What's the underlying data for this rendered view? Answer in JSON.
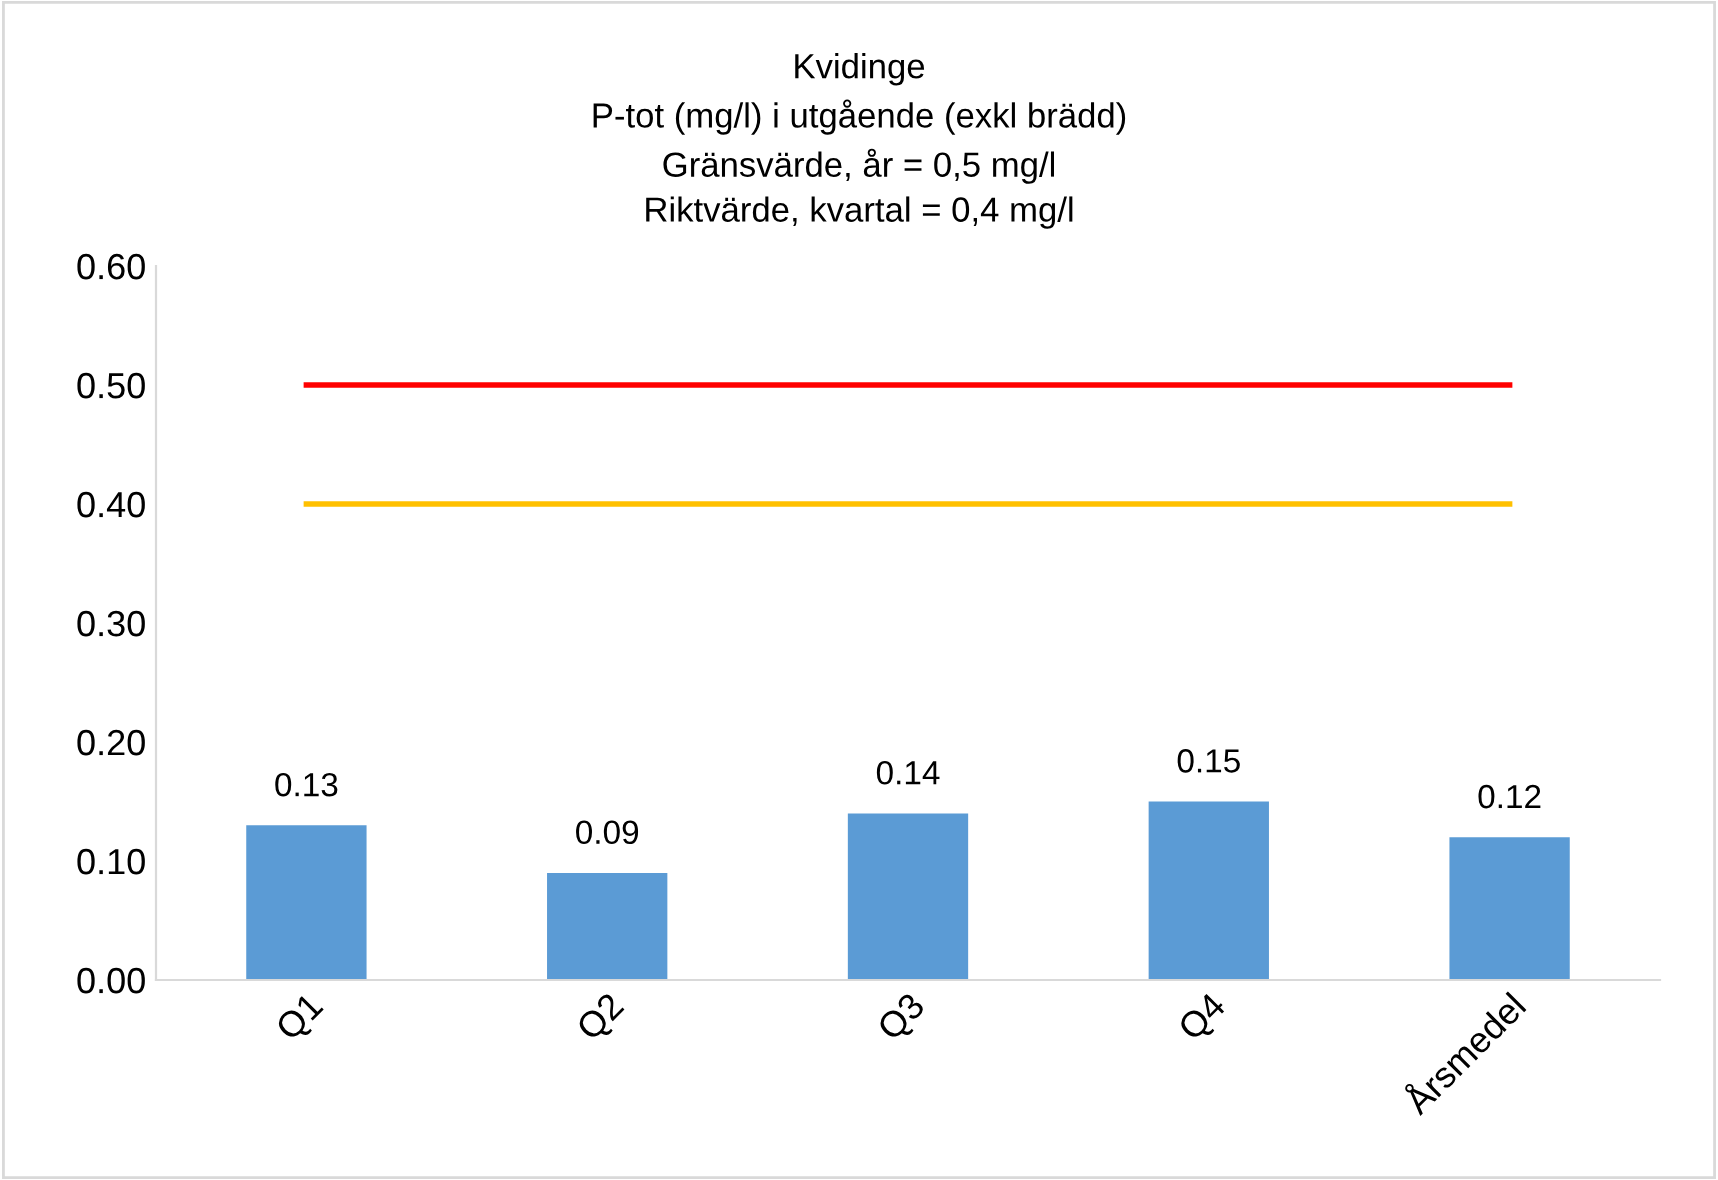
{
  "chart_data": {
    "type": "bar",
    "title": "Kvidinge\nP-tot (mg/l) i utgående (exkl brädd)\nGränsvärde, år = 0,5 mg/l\nRiktvärde, kvartal = 0,4 mg/l",
    "categories": [
      "Q1",
      "Q2",
      "Q3",
      "Q4",
      "Årsmedel"
    ],
    "series": [
      {
        "color": "#5b9bd5",
        "values": [
          0.13,
          0.09,
          0.14,
          0.15,
          0.12
        ],
        "data_labels": true
      },
      {
        "type": "line",
        "color": "#ff0000",
        "values": [
          0.5,
          0.5,
          0.5,
          0.5,
          0.5
        ]
      },
      {
        "type": "line",
        "color": "#ffc000",
        "values": [
          0.4,
          0.4,
          0.4,
          0.4,
          0.4
        ]
      }
    ],
    "ylim": [
      0,
      0.6
    ],
    "yticks": [
      {
        "value": 0,
        "label": "0.00"
      },
      {
        "value": 0.1,
        "label": "0.10"
      },
      {
        "value": 0.2,
        "label": "0.20"
      },
      {
        "value": 0.3,
        "label": "0.30"
      },
      {
        "value": 0.4,
        "label": "0.40"
      },
      {
        "value": 0.5,
        "label": "0.50"
      },
      {
        "value": 0.6,
        "label": "0.60"
      }
    ],
    "grid": false,
    "legend": false
  }
}
